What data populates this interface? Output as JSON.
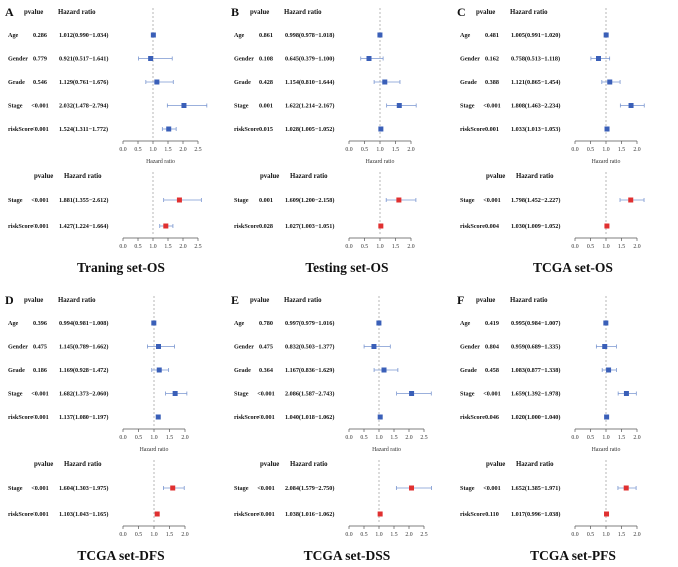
{
  "figure": {
    "column_headers": {
      "pvalue": "pvalue",
      "hazard_ratio": "Hazard ratio"
    },
    "axis_label": "Hazard ratio",
    "colors": {
      "multivariate_marker": "#3a5fb8",
      "univariate_marker": "#e03030",
      "whisker": "#7a96d0",
      "reference_line": "#888888",
      "axis": "#555555"
    }
  },
  "chart_data": [
    {
      "type": "forest",
      "panel_label": "A",
      "title": "Traning set-OS",
      "xlim": [
        0,
        2.5
      ],
      "ticks": [
        0.0,
        0.5,
        1.0,
        1.5,
        2.0,
        2.5
      ],
      "tick_labels": [
        "0.0",
        "0.5",
        "1.0",
        "1.5",
        "2.0",
        "2.5"
      ],
      "multivariate": [
        {
          "name": "Age",
          "pvalue": "0.286",
          "hr_text": "1.012(0.990−1.034)",
          "hr": 1.012,
          "low": 0.99,
          "high": 1.034
        },
        {
          "name": "Gender",
          "pvalue": "0.779",
          "hr_text": "0.921(0.517−1.641)",
          "hr": 0.921,
          "low": 0.517,
          "high": 1.641
        },
        {
          "name": "Grade",
          "pvalue": "0.546",
          "hr_text": "1.129(0.761−1.676)",
          "hr": 1.129,
          "low": 0.761,
          "high": 1.676
        },
        {
          "name": "Stage",
          "pvalue": "<0.001",
          "hr_text": "2.032(1.478−2.794)",
          "hr": 2.032,
          "low": 1.478,
          "high": 2.794
        },
        {
          "name": "riskScore",
          "pvalue": "<0.001",
          "hr_text": "1.524(1.311−1.772)",
          "hr": 1.524,
          "low": 1.311,
          "high": 1.772
        }
      ],
      "univariate": [
        {
          "name": "Stage",
          "pvalue": "<0.001",
          "hr_text": "1.881(1.355−2.612)",
          "hr": 1.881,
          "low": 1.355,
          "high": 2.612
        },
        {
          "name": "riskScore",
          "pvalue": "<0.001",
          "hr_text": "1.427(1.224−1.664)",
          "hr": 1.427,
          "low": 1.224,
          "high": 1.664
        }
      ]
    },
    {
      "type": "forest",
      "panel_label": "B",
      "title": "Testing set-OS",
      "xlim": [
        0,
        2.0
      ],
      "ticks": [
        0.0,
        0.5,
        1.0,
        1.5,
        2.0
      ],
      "tick_labels": [
        "0.0",
        "0.5",
        "1.0",
        "1.5",
        "2.0"
      ],
      "multivariate": [
        {
          "name": "Age",
          "pvalue": "0.861",
          "hr_text": "0.998(0.978−1.018)",
          "hr": 0.998,
          "low": 0.978,
          "high": 1.018
        },
        {
          "name": "Gender",
          "pvalue": "0.108",
          "hr_text": "0.645(0.379−1.100)",
          "hr": 0.645,
          "low": 0.379,
          "high": 1.1
        },
        {
          "name": "Grade",
          "pvalue": "0.428",
          "hr_text": "1.154(0.810−1.644)",
          "hr": 1.154,
          "low": 0.81,
          "high": 1.644
        },
        {
          "name": "Stage",
          "pvalue": "0.001",
          "hr_text": "1.622(1.214−2.167)",
          "hr": 1.622,
          "low": 1.214,
          "high": 2.167
        },
        {
          "name": "riskScore",
          "pvalue": "0.015",
          "hr_text": "1.028(1.005−1.052)",
          "hr": 1.028,
          "low": 1.005,
          "high": 1.052
        }
      ],
      "univariate": [
        {
          "name": "Stage",
          "pvalue": "0.001",
          "hr_text": "1.609(1.200−2.158)",
          "hr": 1.609,
          "low": 1.2,
          "high": 2.158
        },
        {
          "name": "riskScore",
          "pvalue": "0.028",
          "hr_text": "1.027(1.003−1.051)",
          "hr": 1.027,
          "low": 1.003,
          "high": 1.051
        }
      ]
    },
    {
      "type": "forest",
      "panel_label": "C",
      "title": "TCGA set-OS",
      "xlim": [
        0,
        2.0
      ],
      "ticks": [
        0.0,
        0.5,
        1.0,
        1.5,
        2.0
      ],
      "tick_labels": [
        "0.0",
        "0.5",
        "1.0",
        "1.5",
        "2.0"
      ],
      "multivariate": [
        {
          "name": "Age",
          "pvalue": "0.481",
          "hr_text": "1.005(0.991−1.020)",
          "hr": 1.005,
          "low": 0.991,
          "high": 1.02
        },
        {
          "name": "Gender",
          "pvalue": "0.162",
          "hr_text": "0.758(0.513−1.118)",
          "hr": 0.758,
          "low": 0.513,
          "high": 1.118
        },
        {
          "name": "Grade",
          "pvalue": "0.388",
          "hr_text": "1.121(0.865−1.454)",
          "hr": 1.121,
          "low": 0.865,
          "high": 1.454
        },
        {
          "name": "Stage",
          "pvalue": "<0.001",
          "hr_text": "1.808(1.463−2.234)",
          "hr": 1.808,
          "low": 1.463,
          "high": 2.234
        },
        {
          "name": "riskScore",
          "pvalue": "0.001",
          "hr_text": "1.033(1.013−1.053)",
          "hr": 1.033,
          "low": 1.013,
          "high": 1.053
        }
      ],
      "univariate": [
        {
          "name": "Stage",
          "pvalue": "<0.001",
          "hr_text": "1.798(1.452−2.227)",
          "hr": 1.798,
          "low": 1.452,
          "high": 2.227
        },
        {
          "name": "riskScore",
          "pvalue": "0.004",
          "hr_text": "1.030(1.009−1.052)",
          "hr": 1.03,
          "low": 1.009,
          "high": 1.052
        }
      ]
    },
    {
      "type": "forest",
      "panel_label": "D",
      "title": "TCGA set-DFS",
      "xlim": [
        0,
        2.0
      ],
      "ticks": [
        0.0,
        0.5,
        1.0,
        1.5,
        2.0
      ],
      "tick_labels": [
        "0.0",
        "0.5",
        "1.0",
        "1.5",
        "2.0"
      ],
      "multivariate": [
        {
          "name": "Age",
          "pvalue": "0.396",
          "hr_text": "0.994(0.981−1.008)",
          "hr": 0.994,
          "low": 0.981,
          "high": 1.008
        },
        {
          "name": "Gender",
          "pvalue": "0.475",
          "hr_text": "1.145(0.789−1.662)",
          "hr": 1.145,
          "low": 0.789,
          "high": 1.662
        },
        {
          "name": "Grade",
          "pvalue": "0.186",
          "hr_text": "1.169(0.928−1.472)",
          "hr": 1.169,
          "low": 0.928,
          "high": 1.472
        },
        {
          "name": "Stage",
          "pvalue": "<0.001",
          "hr_text": "1.682(1.373−2.060)",
          "hr": 1.682,
          "low": 1.373,
          "high": 2.06
        },
        {
          "name": "riskScore",
          "pvalue": "<0.001",
          "hr_text": "1.137(1.080−1.197)",
          "hr": 1.137,
          "low": 1.08,
          "high": 1.197
        }
      ],
      "univariate": [
        {
          "name": "Stage",
          "pvalue": "<0.001",
          "hr_text": "1.604(1.303−1.975)",
          "hr": 1.604,
          "low": 1.303,
          "high": 1.975
        },
        {
          "name": "riskScore",
          "pvalue": "<0.001",
          "hr_text": "1.103(1.043−1.165)",
          "hr": 1.103,
          "low": 1.043,
          "high": 1.165
        }
      ]
    },
    {
      "type": "forest",
      "panel_label": "E",
      "title": "TCGA set-DSS",
      "xlim": [
        0,
        2.5
      ],
      "ticks": [
        0.0,
        0.5,
        1.0,
        1.5,
        2.0,
        2.5
      ],
      "tick_labels": [
        "0.0",
        "0.5",
        "1.0",
        "1.5",
        "2.0",
        "2.5"
      ],
      "multivariate": [
        {
          "name": "Age",
          "pvalue": "0.780",
          "hr_text": "0.997(0.979−1.016)",
          "hr": 0.997,
          "low": 0.979,
          "high": 1.016
        },
        {
          "name": "Gender",
          "pvalue": "0.475",
          "hr_text": "0.832(0.503−1.377)",
          "hr": 0.832,
          "low": 0.503,
          "high": 1.377
        },
        {
          "name": "Grade",
          "pvalue": "0.364",
          "hr_text": "1.167(0.836−1.629)",
          "hr": 1.167,
          "low": 0.836,
          "high": 1.629
        },
        {
          "name": "Stage",
          "pvalue": "<0.001",
          "hr_text": "2.086(1.587−2.743)",
          "hr": 2.086,
          "low": 1.587,
          "high": 2.743
        },
        {
          "name": "riskScore",
          "pvalue": "<0.001",
          "hr_text": "1.040(1.018−1.062)",
          "hr": 1.04,
          "low": 1.018,
          "high": 1.062
        }
      ],
      "univariate": [
        {
          "name": "Stage",
          "pvalue": "<0.001",
          "hr_text": "2.084(1.579−2.750)",
          "hr": 2.084,
          "low": 1.579,
          "high": 2.75
        },
        {
          "name": "riskScore",
          "pvalue": "<0.001",
          "hr_text": "1.038(1.016−1.062)",
          "hr": 1.038,
          "low": 1.016,
          "high": 1.062
        }
      ]
    },
    {
      "type": "forest",
      "panel_label": "F",
      "title": "TCGA set-PFS",
      "xlim": [
        0,
        2.0
      ],
      "ticks": [
        0.0,
        0.5,
        1.0,
        1.5,
        2.0
      ],
      "tick_labels": [
        "0.0",
        "0.5",
        "1.0",
        "1.5",
        "2.0"
      ],
      "multivariate": [
        {
          "name": "Age",
          "pvalue": "0.419",
          "hr_text": "0.995(0.984−1.007)",
          "hr": 0.995,
          "low": 0.984,
          "high": 1.007
        },
        {
          "name": "Gender",
          "pvalue": "0.804",
          "hr_text": "0.959(0.689−1.335)",
          "hr": 0.959,
          "low": 0.689,
          "high": 1.335
        },
        {
          "name": "Grade",
          "pvalue": "0.458",
          "hr_text": "1.083(0.877−1.338)",
          "hr": 1.083,
          "low": 0.877,
          "high": 1.338
        },
        {
          "name": "Stage",
          "pvalue": "<0.001",
          "hr_text": "1.659(1.392−1.978)",
          "hr": 1.659,
          "low": 1.392,
          "high": 1.978
        },
        {
          "name": "riskScore",
          "pvalue": "0.046",
          "hr_text": "1.020(1.000−1.040)",
          "hr": 1.02,
          "low": 1.0,
          "high": 1.04
        }
      ],
      "univariate": [
        {
          "name": "Stage",
          "pvalue": "<0.001",
          "hr_text": "1.652(1.385−1.971)",
          "hr": 1.652,
          "low": 1.385,
          "high": 1.971
        },
        {
          "name": "riskScore",
          "pvalue": "0.110",
          "hr_text": "1.017(0.996−1.038)",
          "hr": 1.017,
          "low": 0.996,
          "high": 1.038
        }
      ]
    }
  ]
}
